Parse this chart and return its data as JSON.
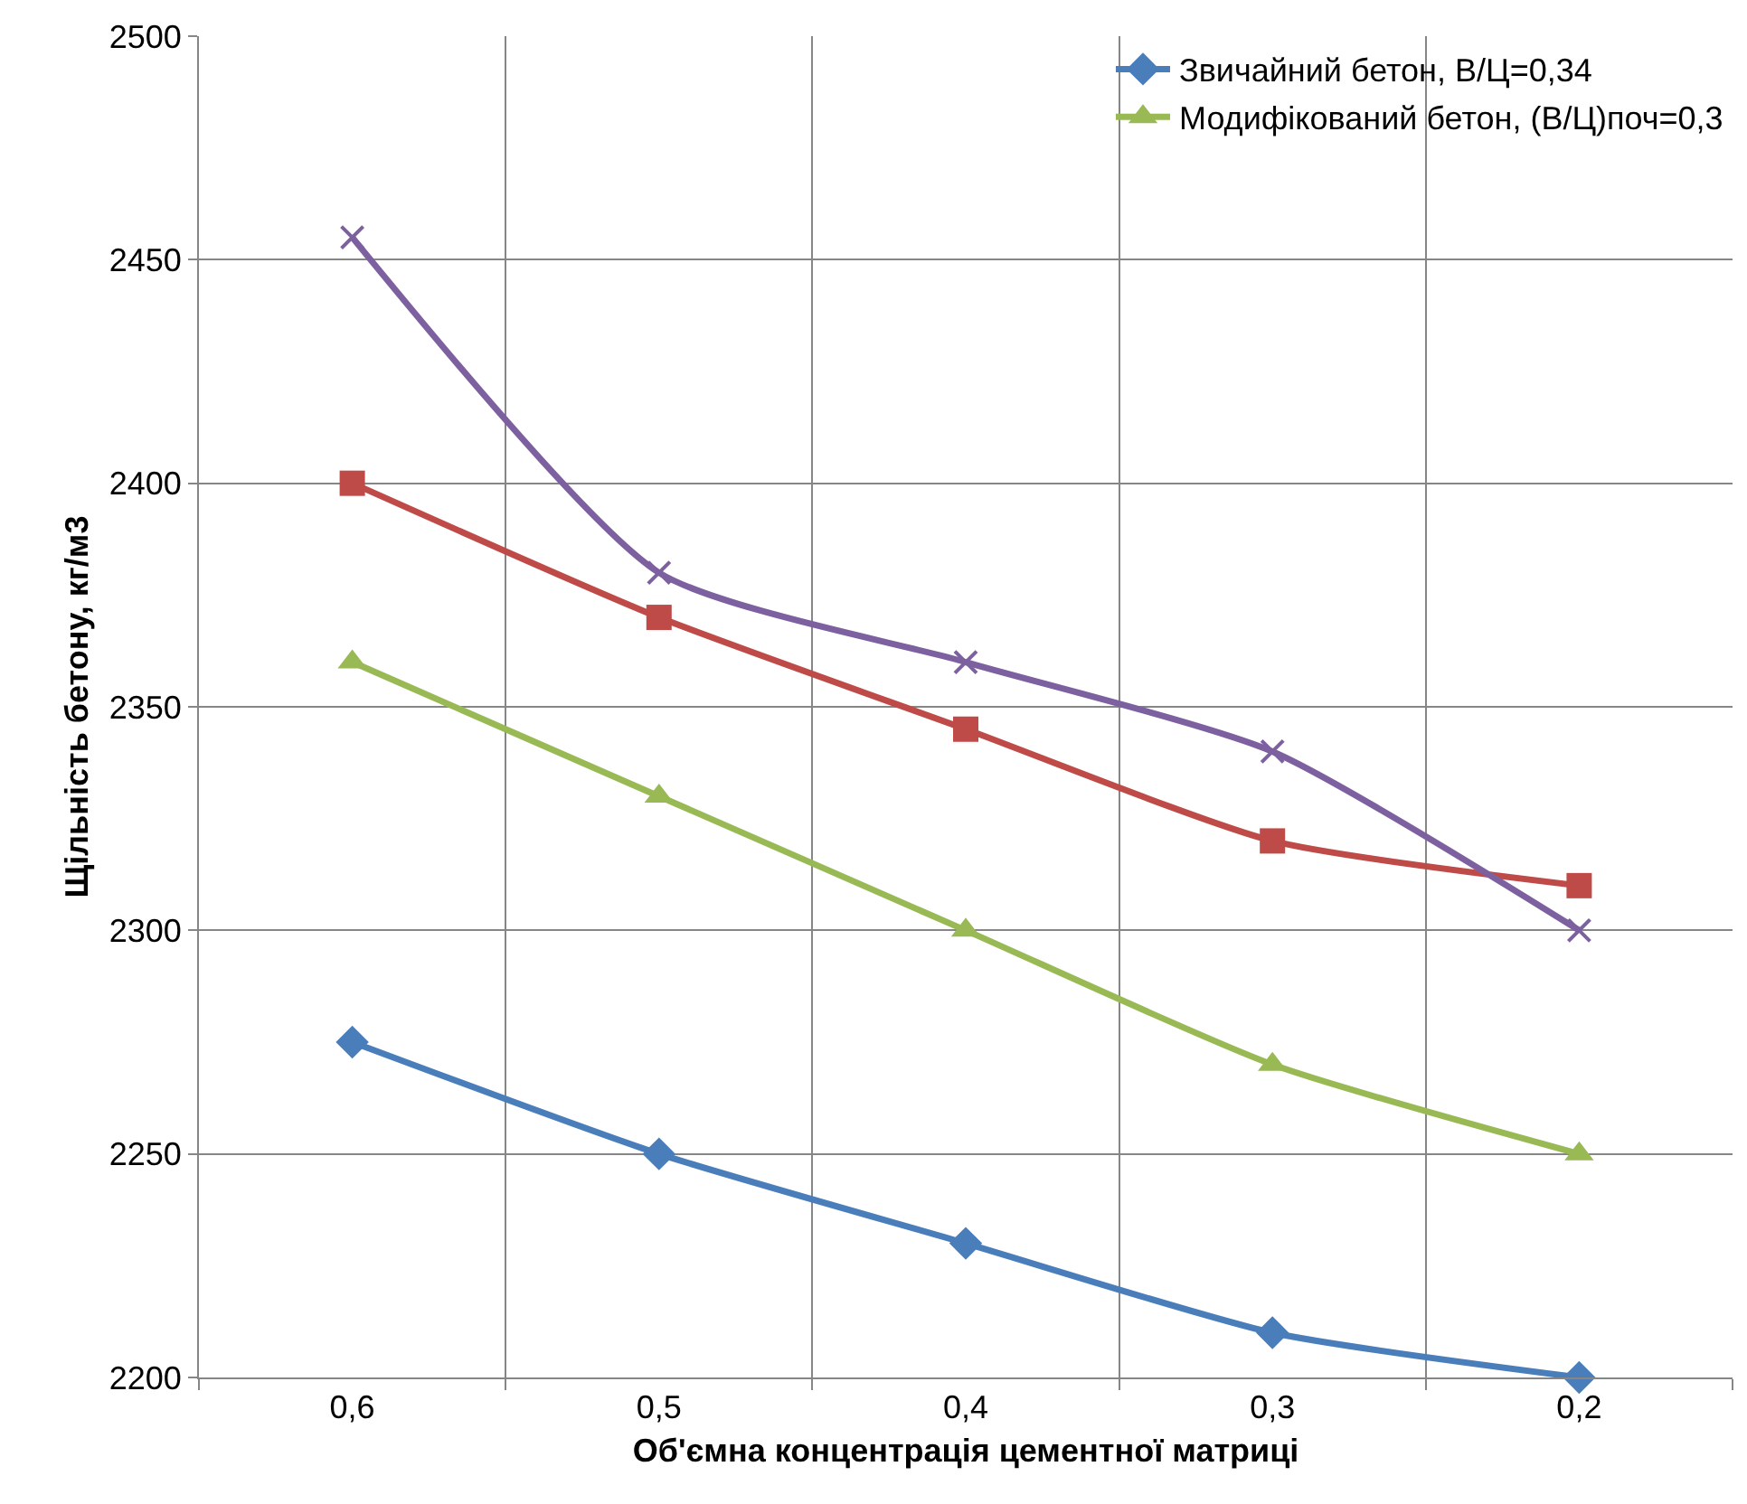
{
  "chart_data": {
    "type": "line",
    "xlabel": "Об'ємна концентрація цементної матриці",
    "ylabel": "Щільність бетону, кг/м3",
    "categories": [
      "0,6",
      "0,5",
      "0,4",
      "0,3",
      "0,2"
    ],
    "series": [
      {
        "name": "Звичайний бетон, В/Ц=0,34",
        "color": "#4a7ebb",
        "marker": "diamond",
        "values": [
          2275,
          2250,
          2230,
          2210,
          2200
        ]
      },
      {
        "name": "Модифікований бетон, (В/Ц)поч=0,3",
        "color": "#98b954",
        "marker": "triangle",
        "values": [
          2360,
          2330,
          2300,
          2270,
          2250
        ]
      },
      {
        "color": "#be4b48",
        "marker": "square",
        "values": [
          2400,
          2370,
          2345,
          2320,
          2310
        ]
      },
      {
        "color": "#7d60a0",
        "marker": "cross",
        "values": [
          2455,
          2380,
          2360,
          2340,
          2300
        ]
      }
    ],
    "ylim": [
      2200,
      2500
    ],
    "yticks": [
      2200,
      2250,
      2300,
      2350,
      2400,
      2450,
      2500
    ],
    "grid": true,
    "legend": "top right",
    "line_style": "solid"
  }
}
